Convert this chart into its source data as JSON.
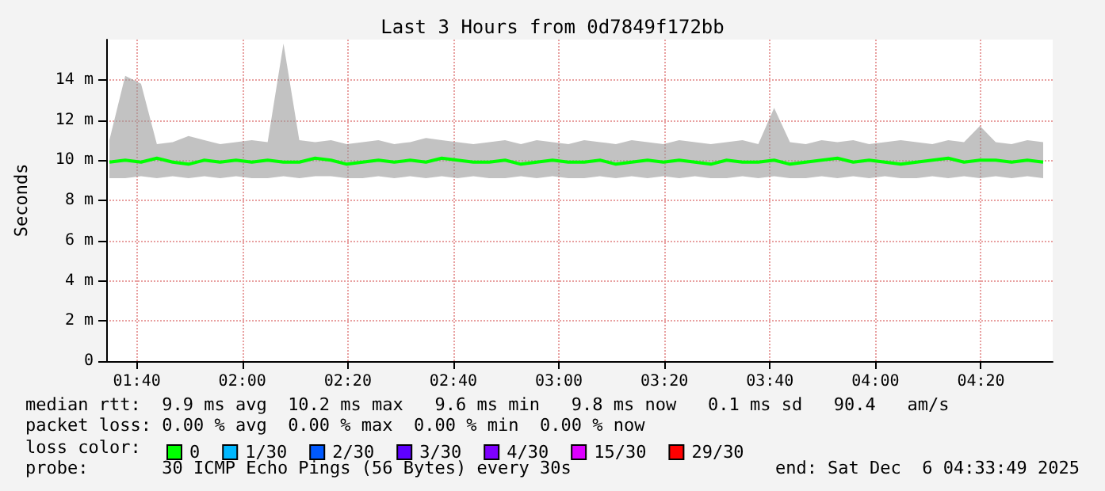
{
  "chart_data": {
    "type": "line",
    "title": "Last 3 Hours from 0d7849f172bb",
    "ylabel": "Seconds",
    "x": [
      1.58,
      1.63,
      1.68,
      1.73,
      1.78,
      1.83,
      1.88,
      1.93,
      1.98,
      2.03,
      2.08,
      2.13,
      2.18,
      2.23,
      2.28,
      2.33,
      2.38,
      2.43,
      2.48,
      2.53,
      2.58,
      2.63,
      2.68,
      2.73,
      2.78,
      2.83,
      2.88,
      2.93,
      2.98,
      3.03,
      3.08,
      3.13,
      3.18,
      3.23,
      3.28,
      3.33,
      3.38,
      3.43,
      3.48,
      3.53,
      3.58,
      3.63,
      3.68,
      3.73,
      3.78,
      3.83,
      3.88,
      3.93,
      3.98,
      4.03,
      4.08,
      4.13,
      4.18,
      4.23,
      4.28,
      4.33,
      4.38,
      4.43,
      4.48,
      4.53
    ],
    "series": [
      {
        "name": "0",
        "color": "#00ff00",
        "values": [
          9.9,
          10.0,
          9.9,
          10.1,
          9.9,
          9.8,
          10.0,
          9.9,
          10.0,
          9.9,
          10.0,
          9.9,
          9.9,
          10.1,
          10.0,
          9.8,
          9.9,
          10.0,
          9.9,
          10.0,
          9.9,
          10.1,
          10.0,
          9.9,
          9.9,
          10.0,
          9.8,
          9.9,
          10.0,
          9.9,
          9.9,
          10.0,
          9.8,
          9.9,
          10.0,
          9.9,
          10.0,
          9.9,
          9.8,
          10.0,
          9.9,
          9.9,
          10.0,
          9.8,
          9.9,
          10.0,
          10.1,
          9.9,
          10.0,
          9.9,
          9.8,
          9.9,
          10.0,
          10.1,
          9.9,
          10.0,
          10.0,
          9.9,
          10.0,
          9.9
        ],
        "lower": [
          9.1,
          9.1,
          9.2,
          9.1,
          9.2,
          9.1,
          9.2,
          9.1,
          9.2,
          9.1,
          9.1,
          9.2,
          9.1,
          9.2,
          9.2,
          9.1,
          9.1,
          9.2,
          9.1,
          9.2,
          9.1,
          9.2,
          9.1,
          9.2,
          9.1,
          9.1,
          9.2,
          9.1,
          9.2,
          9.1,
          9.1,
          9.2,
          9.1,
          9.2,
          9.1,
          9.2,
          9.1,
          9.2,
          9.1,
          9.1,
          9.2,
          9.1,
          9.2,
          9.1,
          9.1,
          9.2,
          9.1,
          9.2,
          9.1,
          9.2,
          9.1,
          9.1,
          9.2,
          9.1,
          9.2,
          9.1,
          9.2,
          9.1,
          9.2,
          9.1
        ],
        "upper": [
          11.0,
          14.2,
          13.8,
          10.8,
          10.9,
          11.2,
          11.0,
          10.8,
          10.9,
          11.0,
          10.9,
          15.8,
          11.0,
          10.9,
          11.0,
          10.8,
          10.9,
          11.0,
          10.8,
          10.9,
          11.1,
          11.0,
          10.9,
          10.8,
          10.9,
          11.0,
          10.8,
          11.0,
          10.9,
          10.8,
          11.0,
          10.9,
          10.8,
          11.0,
          10.9,
          10.8,
          11.0,
          10.9,
          10.8,
          10.9,
          11.0,
          10.8,
          12.6,
          10.9,
          10.8,
          11.0,
          10.9,
          11.0,
          10.8,
          10.9,
          11.0,
          10.9,
          10.8,
          11.0,
          10.9,
          11.7,
          10.9,
          10.8,
          11.0,
          10.9
        ]
      },
      {
        "name": "1/30",
        "color": "#00b8ff",
        "values": [
          null,
          null,
          null,
          null,
          null,
          null,
          null,
          null,
          null,
          null,
          null,
          null,
          null,
          null,
          null,
          null,
          null,
          null,
          null,
          null,
          null,
          null,
          null,
          null,
          null,
          null,
          null,
          null,
          null,
          null,
          null,
          null,
          null,
          null,
          null,
          null,
          null,
          null,
          null,
          null,
          null,
          null,
          null,
          null,
          null,
          null,
          null,
          null,
          null,
          null,
          null,
          null,
          null,
          null,
          null,
          null,
          null,
          null,
          null,
          null
        ]
      },
      {
        "name": "2/30",
        "color": "#0059ff",
        "values": [
          null,
          null,
          null,
          null,
          null,
          null,
          null,
          null,
          null,
          null,
          null,
          null,
          null,
          null,
          null,
          null,
          null,
          null,
          null,
          null,
          null,
          null,
          null,
          null,
          null,
          null,
          null,
          null,
          null,
          null,
          null,
          null,
          null,
          null,
          null,
          null,
          null,
          null,
          null,
          null,
          null,
          null,
          null,
          null,
          null,
          null,
          null,
          null,
          null,
          null,
          null,
          null,
          null,
          null,
          null,
          null,
          null,
          null,
          null,
          null
        ]
      },
      {
        "name": "3/30",
        "color": "#5e00ff",
        "values": [
          null,
          null,
          null,
          null,
          null,
          null,
          null,
          null,
          null,
          null,
          null,
          null,
          null,
          null,
          null,
          null,
          null,
          null,
          null,
          null,
          null,
          null,
          null,
          null,
          null,
          null,
          null,
          null,
          null,
          null,
          null,
          null,
          null,
          null,
          null,
          null,
          null,
          null,
          null,
          null,
          null,
          null,
          null,
          null,
          null,
          null,
          null,
          null,
          null,
          null,
          null,
          null,
          null,
          null,
          null,
          null,
          null,
          null,
          null,
          null
        ]
      },
      {
        "name": "4/30",
        "color": "#7e00ff",
        "values": [
          null,
          null,
          null,
          null,
          null,
          null,
          null,
          null,
          null,
          null,
          null,
          null,
          null,
          null,
          null,
          null,
          null,
          null,
          null,
          null,
          null,
          null,
          null,
          null,
          null,
          null,
          null,
          null,
          null,
          null,
          null,
          null,
          null,
          null,
          null,
          null,
          null,
          null,
          null,
          null,
          null,
          null,
          null,
          null,
          null,
          null,
          null,
          null,
          null,
          null,
          null,
          null,
          null,
          null,
          null,
          null,
          null,
          null,
          null,
          null
        ]
      },
      {
        "name": "15/30",
        "color": "#dd00ff",
        "values": [
          null,
          null,
          null,
          null,
          null,
          null,
          null,
          null,
          null,
          null,
          null,
          null,
          null,
          null,
          null,
          null,
          null,
          null,
          null,
          null,
          null,
          null,
          null,
          null,
          null,
          null,
          null,
          null,
          null,
          null,
          null,
          null,
          null,
          null,
          null,
          null,
          null,
          null,
          null,
          null,
          null,
          null,
          null,
          null,
          null,
          null,
          null,
          null,
          null,
          null,
          null,
          null,
          null,
          null,
          null,
          null,
          null,
          null,
          null,
          null
        ]
      },
      {
        "name": "29/30",
        "color": "#ff0000",
        "values": [
          null,
          null,
          null,
          null,
          null,
          null,
          null,
          null,
          null,
          null,
          null,
          null,
          null,
          null,
          null,
          null,
          null,
          null,
          null,
          null,
          null,
          null,
          null,
          null,
          null,
          null,
          null,
          null,
          null,
          null,
          null,
          null,
          null,
          null,
          null,
          null,
          null,
          null,
          null,
          null,
          null,
          null,
          null,
          null,
          null,
          null,
          null,
          null,
          null,
          null,
          null,
          null,
          null,
          null,
          null,
          null,
          null,
          null,
          null,
          null
        ]
      }
    ],
    "xlim": [
      1.57,
      4.56
    ],
    "xticks": [
      {
        "value": 1.6667,
        "label": "01:40"
      },
      {
        "value": 2,
        "label": "02:00"
      },
      {
        "value": 2.3333,
        "label": "02:20"
      },
      {
        "value": 2.6667,
        "label": "02:40"
      },
      {
        "value": 3,
        "label": "03:00"
      },
      {
        "value": 3.3333,
        "label": "03:20"
      },
      {
        "value": 3.6667,
        "label": "03:40"
      },
      {
        "value": 4,
        "label": "04:00"
      },
      {
        "value": 4.3333,
        "label": "04:20"
      }
    ],
    "ylim": [
      0,
      16
    ],
    "yticks": [
      0,
      {
        "value": 2,
        "label": "2 m"
      },
      {
        "value": 4,
        "label": "4 m"
      },
      {
        "value": 6,
        "label": "6 m"
      },
      {
        "value": 8,
        "label": "8 m"
      },
      {
        "value": 10,
        "label": "10 m"
      },
      {
        "value": 12,
        "label": "12 m"
      },
      {
        "value": 14,
        "label": "14 m"
      }
    ],
    "grid": true,
    "legend": "bottom",
    "legend_title": "loss color:",
    "annotations": [
      "median rtt:  9.9 ms avg  10.2 ms max   9.6 ms min   9.8 ms now   0.1 ms sd   90.4   am/s",
      "packet loss: 0.00 % avg  0.00 % max  0.00 % min  0.00 % now",
      "probe:       30 ICMP Echo Pings (56 Bytes) every 30s",
      "end: Sat Dec  6 04:33:49 2025"
    ]
  }
}
